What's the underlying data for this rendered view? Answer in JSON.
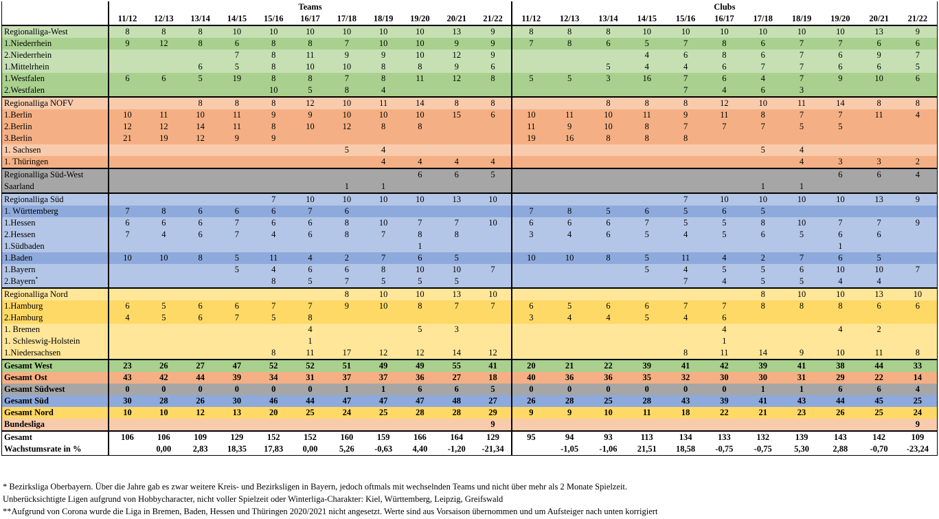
{
  "headers": {
    "teams": "Teams",
    "clubs": "Clubs",
    "seasons": [
      "11/12",
      "12/13",
      "13/14",
      "14/15",
      "15/16",
      "16/17",
      "17/18",
      "18/19",
      "19/20",
      "20/21",
      "21/22"
    ]
  },
  "colors": {
    "west_light": "#c6e0b4",
    "west_dark": "#a9d08e",
    "ost_light": "#f8cbad",
    "ost_dark": "#f4b084",
    "suedwest": "#a6a6a6",
    "sued_light": "#b4c6e7",
    "sued_dark": "#8ea9db",
    "nord_light": "#ffe699",
    "nord_dark": "#ffd966",
    "bundesliga": "#f8cbad"
  },
  "rows": [
    {
      "label": "Regionalliga-West",
      "bg": "west_light",
      "group_start": true,
      "teams": [
        "8",
        "8",
        "8",
        "10",
        "10",
        "10",
        "10",
        "10",
        "10",
        "13",
        "9"
      ],
      "clubs": [
        "8",
        "8",
        "8",
        "10",
        "10",
        "10",
        "10",
        "10",
        "10",
        "13",
        "9"
      ]
    },
    {
      "label": "1.Niederrhein",
      "bg": "west_dark",
      "teams": [
        "9",
        "12",
        "8",
        "6",
        "8",
        "8",
        "7",
        "10",
        "10",
        "9",
        "9"
      ],
      "clubs": [
        "7",
        "8",
        "6",
        "5",
        "7",
        "8",
        "6",
        "7",
        "7",
        "6",
        "6"
      ]
    },
    {
      "label": "2.Niederrhein",
      "bg": "west_light",
      "teams": [
        "",
        "",
        "",
        "7",
        "8",
        "11",
        "9",
        "9",
        "10",
        "12",
        "9"
      ],
      "clubs": [
        "",
        "",
        "",
        "4",
        "6",
        "8",
        "6",
        "7",
        "6",
        "9",
        "7"
      ]
    },
    {
      "label": "1.Mittelrhein",
      "bg": "west_light",
      "teams": [
        "",
        "",
        "6",
        "5",
        "8",
        "10",
        "10",
        "8",
        "8",
        "9",
        "6"
      ],
      "clubs": [
        "",
        "",
        "5",
        "4",
        "4",
        "6",
        "7",
        "7",
        "6",
        "6",
        "5"
      ]
    },
    {
      "label": "1.Westfalen",
      "bg": "west_dark",
      "teams": [
        "6",
        "6",
        "5",
        "19",
        "8",
        "8",
        "7",
        "8",
        "11",
        "12",
        "8"
      ],
      "clubs": [
        "5",
        "5",
        "3",
        "16",
        "7",
        "6",
        "4",
        "7",
        "9",
        "10",
        "6"
      ]
    },
    {
      "label": "2.Westfalen",
      "bg": "west_dark",
      "teams": [
        "",
        "",
        "",
        "",
        "10",
        "5",
        "8",
        "4",
        "",
        "",
        ""
      ],
      "clubs": [
        "",
        "",
        "",
        "",
        "7",
        "4",
        "6",
        "3",
        "",
        "",
        ""
      ]
    },
    {
      "label": "Regionalliga NOFV",
      "bg": "ost_light",
      "group_start": true,
      "teams": [
        "",
        "",
        "8",
        "8",
        "8",
        "12",
        "10",
        "11",
        "14",
        "8",
        "8"
      ],
      "clubs": [
        "",
        "",
        "8",
        "8",
        "8",
        "12",
        "10",
        "11",
        "14",
        "8",
        "8"
      ]
    },
    {
      "label": "1.Berlin",
      "bg": "ost_dark",
      "teams": [
        "10",
        "11",
        "10",
        "11",
        "9",
        "9",
        "10",
        "10",
        "10",
        "15",
        "6"
      ],
      "clubs": [
        "10",
        "11",
        "10",
        "11",
        "9",
        "11",
        "8",
        "7",
        "7",
        "11",
        "4"
      ]
    },
    {
      "label": "2.Berlin",
      "bg": "ost_dark",
      "teams": [
        "12",
        "12",
        "14",
        "11",
        "8",
        "10",
        "12",
        "8",
        "8",
        "",
        ""
      ],
      "clubs": [
        "11",
        "9",
        "10",
        "8",
        "7",
        "7",
        "7",
        "5",
        "5",
        "",
        ""
      ]
    },
    {
      "label": "3.Berlin",
      "bg": "ost_dark",
      "teams": [
        "21",
        "19",
        "12",
        "9",
        "9",
        "",
        "",
        "",
        "",
        "",
        ""
      ],
      "clubs": [
        "19",
        "16",
        "8",
        "8",
        "8",
        "",
        "",
        "",
        "",
        "",
        ""
      ]
    },
    {
      "label": "1. Sachsen",
      "bg": "ost_light",
      "teams": [
        "",
        "",
        "",
        "",
        "",
        "",
        "5",
        "4",
        "",
        "",
        ""
      ],
      "clubs": [
        "",
        "",
        "",
        "",
        "",
        "",
        "5",
        "4",
        "",
        "",
        ""
      ]
    },
    {
      "label": "1. Thüringen",
      "bg": "ost_dark",
      "teams": [
        "",
        "",
        "",
        "",
        "",
        "",
        "",
        "4",
        "4",
        "4",
        "4"
      ],
      "clubs": [
        "",
        "",
        "",
        "",
        "",
        "",
        "",
        "4",
        "3",
        "3",
        "2"
      ]
    },
    {
      "label": "Regionalliga Süd-West",
      "bg": "suedwest",
      "group_start": true,
      "teams": [
        "",
        "",
        "",
        "",
        "",
        "",
        "",
        "",
        "6",
        "6",
        "5"
      ],
      "clubs": [
        "",
        "",
        "",
        "",
        "",
        "",
        "",
        "",
        "6",
        "6",
        "4"
      ]
    },
    {
      "label": "Saarland",
      "bg": "suedwest",
      "teams": [
        "",
        "",
        "",
        "",
        "",
        "",
        "1",
        "1",
        "",
        "",
        ""
      ],
      "clubs": [
        "",
        "",
        "",
        "",
        "",
        "",
        "1",
        "1",
        "",
        "",
        ""
      ]
    },
    {
      "label": "Regionalliga Süd",
      "bg": "sued_light",
      "group_start": true,
      "teams": [
        "",
        "",
        "",
        "",
        "7",
        "10",
        "10",
        "10",
        "10",
        "13",
        "10"
      ],
      "clubs": [
        "",
        "",
        "",
        "",
        "7",
        "10",
        "10",
        "10",
        "10",
        "13",
        "9"
      ]
    },
    {
      "label": "1. Württemberg",
      "bg": "sued_dark",
      "teams": [
        "7",
        "8",
        "6",
        "6",
        "6",
        "7",
        "6",
        "",
        "",
        "",
        ""
      ],
      "clubs": [
        "7",
        "8",
        "5",
        "6",
        "5",
        "6",
        "5",
        "",
        "",
        "",
        ""
      ]
    },
    {
      "label": "1.Hessen",
      "bg": "sued_light",
      "teams": [
        "6",
        "6",
        "6",
        "7",
        "6",
        "6",
        "8",
        "10",
        "7",
        "7",
        "10"
      ],
      "clubs": [
        "6",
        "6",
        "6",
        "7",
        "5",
        "5",
        "8",
        "10",
        "7",
        "7",
        "9"
      ]
    },
    {
      "label": "2.Hessen",
      "bg": "sued_light",
      "teams": [
        "7",
        "4",
        "6",
        "7",
        "4",
        "6",
        "8",
        "7",
        "8",
        "8",
        ""
      ],
      "clubs": [
        "3",
        "4",
        "6",
        "5",
        "4",
        "5",
        "6",
        "5",
        "6",
        "6",
        ""
      ]
    },
    {
      "label": "1.Südbaden",
      "bg": "sued_light",
      "teams": [
        "",
        "",
        "",
        "",
        "",
        "",
        "",
        "",
        "1",
        "",
        ""
      ],
      "clubs": [
        "",
        "",
        "",
        "",
        "",
        "",
        "",
        "",
        "1",
        "",
        ""
      ]
    },
    {
      "label": "1.Baden",
      "bg": "sued_dark",
      "teams": [
        "10",
        "10",
        "8",
        "5",
        "11",
        "4",
        "2",
        "7",
        "6",
        "5",
        ""
      ],
      "clubs": [
        "10",
        "10",
        "8",
        "5",
        "11",
        "4",
        "2",
        "7",
        "6",
        "5",
        ""
      ]
    },
    {
      "label": "1.Bayern",
      "bg": "sued_light",
      "teams": [
        "",
        "",
        "",
        "5",
        "4",
        "6",
        "6",
        "8",
        "10",
        "10",
        "7"
      ],
      "clubs": [
        "",
        "",
        "",
        "5",
        "4",
        "5",
        "5",
        "6",
        "10",
        "10",
        "7"
      ]
    },
    {
      "label": "2.Bayern",
      "sup": "*",
      "bg": "sued_light",
      "teams": [
        "",
        "",
        "",
        "",
        "8",
        "5",
        "7",
        "5",
        "5",
        "5",
        ""
      ],
      "clubs": [
        "",
        "",
        "",
        "",
        "7",
        "4",
        "5",
        "5",
        "4",
        "4",
        ""
      ]
    },
    {
      "label": "Regionalliga Nord",
      "bg": "nord_light",
      "group_start": true,
      "teams": [
        "",
        "",
        "",
        "",
        "",
        "",
        "8",
        "10",
        "10",
        "13",
        "10"
      ],
      "clubs": [
        "",
        "",
        "",
        "",
        "",
        "",
        "8",
        "10",
        "10",
        "13",
        "10"
      ]
    },
    {
      "label": "1.Hamburg",
      "bg": "nord_dark",
      "teams": [
        "6",
        "5",
        "6",
        "6",
        "7",
        "7",
        "9",
        "10",
        "8",
        "7",
        "7"
      ],
      "clubs": [
        "6",
        "5",
        "6",
        "6",
        "7",
        "7",
        "8",
        "8",
        "8",
        "6",
        "6"
      ]
    },
    {
      "label": "2.Hamburg",
      "bg": "nord_dark",
      "teams": [
        "4",
        "5",
        "6",
        "7",
        "5",
        "8",
        "",
        "",
        "",
        "",
        ""
      ],
      "clubs": [
        "3",
        "4",
        "4",
        "5",
        "4",
        "6",
        "",
        "",
        "",
        "",
        ""
      ]
    },
    {
      "label": "1. Bremen",
      "bg": "nord_light",
      "teams": [
        "",
        "",
        "",
        "",
        "",
        "4",
        "",
        "",
        "5",
        "3",
        ""
      ],
      "clubs": [
        "",
        "",
        "",
        "",
        "",
        "4",
        "",
        "",
        "4",
        "2",
        ""
      ]
    },
    {
      "label": "1. Schleswig-Holstein",
      "bg": "nord_light",
      "teams": [
        "",
        "",
        "",
        "",
        "",
        "1",
        "",
        "",
        "",
        "",
        ""
      ],
      "clubs": [
        "",
        "",
        "",
        "",
        "",
        "1",
        "",
        "",
        "",
        "",
        ""
      ]
    },
    {
      "label": "1.Niedersachsen",
      "bg": "nord_light",
      "teams": [
        "",
        "",
        "",
        "",
        "8",
        "11",
        "17",
        "12",
        "12",
        "14",
        "12"
      ],
      "clubs": [
        "",
        "",
        "",
        "",
        "8",
        "11",
        "14",
        "9",
        "10",
        "11",
        "8"
      ]
    },
    {
      "label": "Gesamt West",
      "bg": "west_dark",
      "total": true,
      "group_start": true,
      "teams": [
        "23",
        "26",
        "27",
        "47",
        "52",
        "52",
        "51",
        "49",
        "49",
        "55",
        "41"
      ],
      "clubs": [
        "20",
        "21",
        "22",
        "39",
        "41",
        "42",
        "39",
        "41",
        "38",
        "44",
        "33"
      ]
    },
    {
      "label": "Gesamt Ost",
      "bg": "ost_dark",
      "total": true,
      "teams": [
        "43",
        "42",
        "44",
        "39",
        "34",
        "31",
        "37",
        "37",
        "36",
        "27",
        "18"
      ],
      "clubs": [
        "40",
        "36",
        "36",
        "35",
        "32",
        "30",
        "30",
        "31",
        "29",
        "22",
        "14"
      ]
    },
    {
      "label": "Gesamt Südwest",
      "bg": "suedwest",
      "total": true,
      "teams": [
        "0",
        "0",
        "0",
        "0",
        "0",
        "0",
        "1",
        "1",
        "6",
        "6",
        "5"
      ],
      "clubs": [
        "0",
        "0",
        "0",
        "0",
        "0",
        "0",
        "1",
        "1",
        "6",
        "6",
        "4"
      ]
    },
    {
      "label": "Gesamt Süd",
      "bg": "sued_dark",
      "total": true,
      "teams": [
        "30",
        "28",
        "26",
        "30",
        "46",
        "44",
        "47",
        "47",
        "47",
        "48",
        "27"
      ],
      "clubs": [
        "26",
        "28",
        "25",
        "28",
        "43",
        "39",
        "41",
        "43",
        "44",
        "45",
        "25"
      ]
    },
    {
      "label": "Gesamt Nord",
      "bg": "nord_dark",
      "total": true,
      "teams": [
        "10",
        "10",
        "12",
        "13",
        "20",
        "25",
        "24",
        "25",
        "28",
        "28",
        "29"
      ],
      "clubs": [
        "9",
        "9",
        "10",
        "11",
        "18",
        "22",
        "21",
        "23",
        "26",
        "25",
        "24"
      ]
    },
    {
      "label": "Bundesliga",
      "bg": "bundesliga",
      "total": true,
      "teams": [
        "",
        "",
        "",
        "",
        "",
        "",
        "",
        "",
        "",
        "",
        "9"
      ],
      "clubs": [
        "",
        "",
        "",
        "",
        "",
        "",
        "",
        "",
        "",
        "",
        "9"
      ]
    }
  ],
  "summary": [
    {
      "label": "Gesamt",
      "teams": [
        "106",
        "106",
        "109",
        "129",
        "152",
        "152",
        "160",
        "159",
        "166",
        "164",
        "129"
      ],
      "clubs": [
        "95",
        "94",
        "93",
        "113",
        "134",
        "133",
        "132",
        "139",
        "143",
        "142",
        "109"
      ]
    },
    {
      "label": "Wachstumsrate in %",
      "teams": [
        "",
        "0,00",
        "2,83",
        "18,35",
        "17,83",
        "0,00",
        "5,26",
        "-0,63",
        "4,40",
        "-1,20",
        "-21,34"
      ],
      "clubs": [
        "",
        "-1,05",
        "-1,06",
        "21,51",
        "18,58",
        "-0,75",
        "-0,75",
        "5,30",
        "2,88",
        "-0,70",
        "-23,24"
      ]
    }
  ],
  "notes": [
    "* Bezirksliga Oberbayern. Über die Jahre gab es zwar weitere Kreis- und Bezirksligen in Bayern, jedoch oftmals mit wechselnden Teams und nicht über mehr als 2 Monate Spielzeit.",
    "Unberücksichtigte Ligen aufgrund von Hobbycharacter, nicht voller Spielzeit oder Winterliga-Charakter: Kiel, Württemberg, Leipzig, Greifswald",
    "**Aufgrund von Corona wurde die Liga in Bremen, Baden, Hessen und Thüringen 2020/2021 nicht angesetzt. Werte sind aus Vorsaison übernommen und um Aufsteiger nach unten korrigiert"
  ]
}
